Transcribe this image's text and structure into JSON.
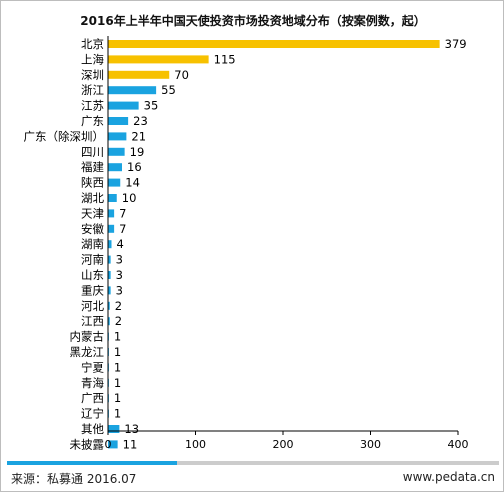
{
  "footer": {
    "source": "来源：私募通 2016.07",
    "site": "www.pedata.cn"
  },
  "colors": {
    "highlight": "#f7c100",
    "normal": "#1aa3e0",
    "axis": "#000000"
  },
  "chart_data": {
    "type": "bar",
    "orientation": "horizontal",
    "title": "2016年上半年中国天使投资市场投资地域分布（按案例数，起）",
    "xlim": [
      0,
      400
    ],
    "xticks": [
      0,
      100,
      200,
      300,
      400
    ],
    "categories": [
      "北京",
      "上海",
      "深圳",
      "浙江",
      "江苏",
      "广东",
      "广东（除深圳）",
      "四川",
      "福建",
      "陕西",
      "湖北",
      "天津",
      "安徽",
      "湖南",
      "河南",
      "山东",
      "重庆",
      "河北",
      "江西",
      "内蒙古",
      "黑龙江",
      "宁夏",
      "青海",
      "广西",
      "辽宁",
      "其他",
      "未披露"
    ],
    "values": [
      379,
      115,
      70,
      55,
      35,
      23,
      21,
      19,
      16,
      14,
      10,
      7,
      7,
      4,
      3,
      3,
      3,
      2,
      2,
      1,
      1,
      1,
      1,
      1,
      1,
      13,
      11
    ],
    "bar_colors": [
      "highlight",
      "highlight",
      "highlight",
      "normal",
      "normal",
      "normal",
      "normal",
      "normal",
      "normal",
      "normal",
      "normal",
      "normal",
      "normal",
      "normal",
      "normal",
      "normal",
      "normal",
      "normal",
      "normal",
      "normal",
      "normal",
      "normal",
      "normal",
      "normal",
      "normal",
      "normal",
      "normal"
    ]
  }
}
